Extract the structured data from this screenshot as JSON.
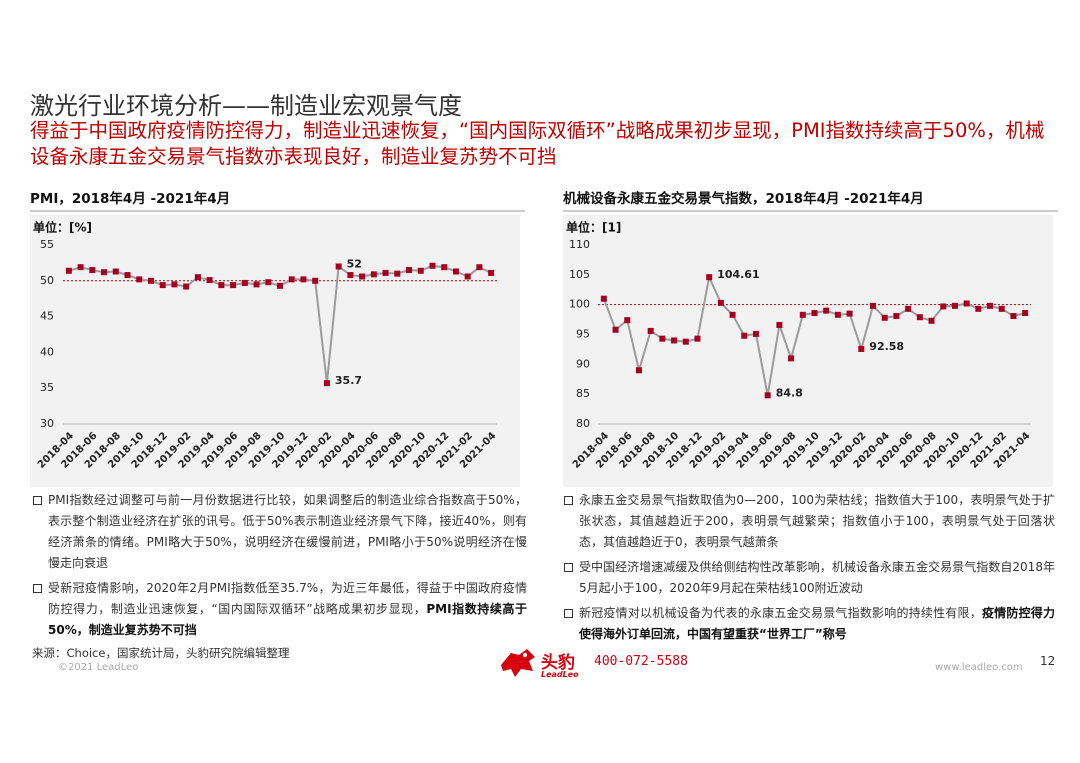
{
  "header": {
    "title": "激光行业环境分析——制造业宏观景气度",
    "subtitle": "得益于中国政府疫情防控得力，制造业迅速恢复，“国内国际双循环”战略成果初步显现，PMI指数持续高于50%，机械设备永康五金交易景气指数亦表现良好，制造业复苏势不可挡"
  },
  "chart_data": [
    {
      "type": "line",
      "title": "PMI，2018年4月 -2021年4月",
      "unit": "单位：[%]",
      "categories": [
        "2018-04",
        null,
        "2018-06",
        null,
        "2018-08",
        null,
        "2018-10",
        null,
        "2018-12",
        null,
        "2019-02",
        null,
        "2019-04",
        null,
        "2019-06",
        null,
        "2019-08",
        null,
        "2019-10",
        null,
        "2019-12",
        null,
        "2020-02",
        null,
        "2020-04",
        null,
        "2020-06",
        null,
        "2020-08",
        null,
        "2020-10",
        null,
        "2020-12",
        null,
        "2021-02",
        null,
        "2021-04"
      ],
      "values": [
        51.4,
        51.9,
        51.5,
        51.2,
        51.3,
        50.8,
        50.2,
        50.0,
        49.4,
        49.5,
        49.2,
        50.5,
        50.1,
        49.4,
        49.4,
        49.7,
        49.5,
        49.8,
        49.3,
        50.2,
        50.2,
        50.0,
        35.7,
        52,
        50.8,
        50.6,
        50.9,
        51.1,
        51.0,
        51.5,
        51.4,
        52.1,
        51.9,
        51.3,
        50.6,
        51.9,
        51.1
      ],
      "value_labels": [
        null,
        null,
        null,
        null,
        null,
        null,
        null,
        null,
        null,
        null,
        null,
        null,
        null,
        null,
        null,
        null,
        null,
        null,
        null,
        null,
        null,
        null,
        "35.7",
        "52",
        null,
        null,
        null,
        null,
        null,
        null,
        null,
        null,
        null,
        null,
        null,
        null,
        null
      ],
      "ylim": [
        30,
        55
      ],
      "yticks": [
        30,
        35,
        40,
        45,
        50,
        55
      ],
      "reference_line": 50,
      "line_color": "#9b9b9b",
      "marker_color": "#a50021",
      "reference_color": "#c00000",
      "grid": false
    },
    {
      "type": "line",
      "title": "机械设备永康五金交易景气指数，2018年4月 -2021年4月",
      "unit": "单位：[1]",
      "categories": [
        "2018-04",
        null,
        "2018-06",
        null,
        "2018-08",
        null,
        "2018-10",
        null,
        "2018-12",
        null,
        "2019-02",
        null,
        "2019-04",
        null,
        "2019-06",
        null,
        "2019-08",
        null,
        "2019-10",
        null,
        "2019-12",
        null,
        "2020-02",
        null,
        "2020-04",
        null,
        "2020-06",
        null,
        "2020-08",
        null,
        "2020-10",
        null,
        "2020-12",
        null,
        "2021-02",
        null,
        "2021-04"
      ],
      "values": [
        101.0,
        95.8,
        97.4,
        89.0,
        95.6,
        94.3,
        94.0,
        93.8,
        94.3,
        104.61,
        100.3,
        98.3,
        94.8,
        95.1,
        84.8,
        96.6,
        91.0,
        98.3,
        98.6,
        99.0,
        98.3,
        98.5,
        92.58,
        99.8,
        97.8,
        98.1,
        99.3,
        97.9,
        97.3,
        99.7,
        99.8,
        100.2,
        99.3,
        99.8,
        99.3,
        98.1,
        98.6
      ],
      "value_labels": [
        null,
        null,
        null,
        null,
        null,
        null,
        null,
        null,
        null,
        "104.61",
        null,
        null,
        null,
        null,
        "84.8",
        null,
        null,
        null,
        null,
        null,
        null,
        null,
        "92.58",
        null,
        null,
        null,
        null,
        null,
        null,
        null,
        null,
        null,
        null,
        null,
        null,
        null,
        null
      ],
      "ylim": [
        80,
        110
      ],
      "yticks": [
        80,
        85,
        90,
        95,
        100,
        105,
        110
      ],
      "reference_line": 100,
      "line_color": "#9b9b9b",
      "marker_color": "#a50021",
      "reference_color": "#c00000",
      "grid": false
    }
  ],
  "bullets_left": [
    {
      "text": "PMI指数经过调整可与前一月份数据进行比较，如果调整后的制造业综合指数高于50%，表示整个制造业经济在扩张的讯号。低于50%表示制造业经济景气下降，接近40%，则有经济萧条的情绪。PMI略大于50%，说明经济在缓慢前进，PMI略小于50%说明经济在慢慢走向衰退"
    },
    {
      "text": "受新冠疫情影响，2020年2月PMI指数低至35.7%，为近三年最低，得益于中国政府疫情防控得力，制造业迅速恢复，“国内国际双循环”战略成果初步显现，",
      "bold": "PMI指数持续高于50%，制造业复苏势不可挡"
    }
  ],
  "bullets_right": [
    {
      "text": "永康五金交易景气指数取值为0—200，100为荣枯线；指数值大于100，表明景气处于扩张状态，其值越趋近于200，表明景气越繁荣；指数值小于100，表明景气处于回落状态，其值越趋近于0，表明景气越萧条"
    },
    {
      "text": "受中国经济增速减缓及供给侧结构性改革影响，机械设备永康五金交易景气指数自2018年5月起小于100，2020年9月起在荣枯线100附近波动"
    },
    {
      "text": "新冠疫情对以机械设备为代表的永康五金交易景气指数影响的持续性有限，",
      "bold": "疫情防控得力使得海外订单回流，中国有望重获“世界工厂”称号"
    }
  ],
  "footer": {
    "source": "来源：Choice，国家统计局，头豹研究院编辑整理",
    "copyright": "©2021 LeadLeo",
    "brand_cn": "头豹",
    "brand_en": "LeadLeo",
    "phone": "400-072-5588",
    "website": "www.leadleo.com",
    "page": "12"
  }
}
